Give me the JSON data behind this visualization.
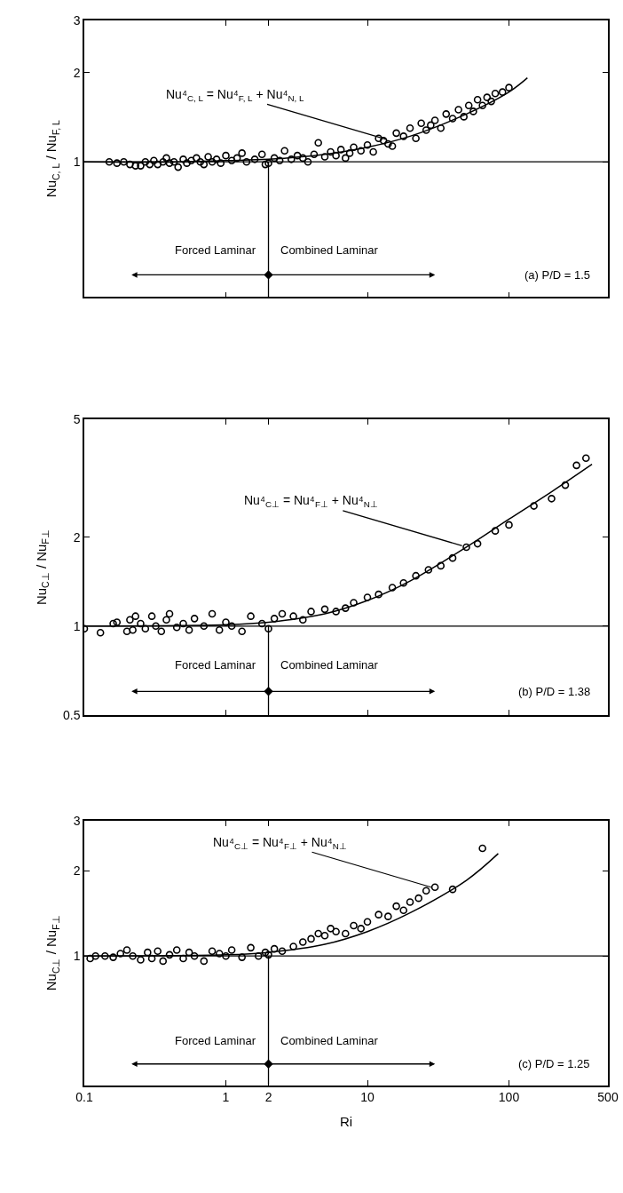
{
  "chart_data": [
    {
      "type": "scatter",
      "xlim": [
        0.1,
        500
      ],
      "ylim": [
        0.35,
        3
      ],
      "xticks": [
        0.1,
        1,
        2,
        10,
        100,
        500
      ],
      "yticks": [
        1,
        2,
        3
      ],
      "log": "xy",
      "tick_labels": "y",
      "marker": "circle",
      "ylabel": "Nu$_{C, L}$ / Nu$_{F, L}$",
      "series": [
        {
          "color": "#000000",
          "x": [
            0.15,
            0.17,
            0.19,
            0.21,
            0.23,
            0.25,
            0.27,
            0.29,
            0.31,
            0.33,
            0.36,
            0.38,
            0.4,
            0.43,
            0.46,
            0.5,
            0.53,
            0.57,
            0.62,
            0.66,
            0.7,
            0.75,
            0.8,
            0.86,
            0.92,
            1.0,
            1.1,
            1.2,
            1.3,
            1.4,
            1.6,
            1.8,
            1.9,
            2.0,
            2.2,
            2.4,
            2.6,
            2.9,
            3.2,
            3.5,
            3.8,
            4.2,
            4.5,
            5.0,
            5.5,
            6.0,
            6.5,
            7.0,
            7.5,
            8.0,
            9,
            10,
            11,
            12,
            13,
            14,
            15,
            16,
            18,
            20,
            22,
            24,
            26,
            28,
            30,
            33,
            36,
            40,
            44,
            48,
            52,
            56,
            60,
            65,
            70,
            75,
            80,
            90,
            100
          ],
          "values": [
            1.0,
            0.99,
            1.0,
            0.98,
            0.97,
            0.97,
            1.0,
            0.98,
            1.01,
            0.98,
            1.0,
            1.03,
            0.99,
            1.0,
            0.96,
            1.02,
            0.99,
            1.01,
            1.03,
            1.0,
            0.98,
            1.04,
            1.0,
            1.02,
            0.99,
            1.05,
            1.01,
            1.03,
            1.07,
            1.0,
            1.02,
            1.06,
            0.98,
            0.99,
            1.03,
            1.01,
            1.09,
            1.02,
            1.05,
            1.03,
            1.0,
            1.06,
            1.16,
            1.04,
            1.08,
            1.05,
            1.1,
            1.03,
            1.07,
            1.12,
            1.09,
            1.14,
            1.08,
            1.2,
            1.18,
            1.15,
            1.13,
            1.25,
            1.22,
            1.3,
            1.2,
            1.35,
            1.28,
            1.33,
            1.38,
            1.3,
            1.45,
            1.4,
            1.5,
            1.42,
            1.55,
            1.48,
            1.62,
            1.55,
            1.65,
            1.6,
            1.7,
            1.72,
            1.78
          ]
        },
        {
          "type": "line",
          "color": "#000000",
          "marker": "none",
          "x": [
            0.1,
            0.5,
            1,
            2,
            5,
            10,
            20,
            50,
            100,
            135
          ],
          "values": [
            1.0,
            1.0,
            1.01,
            1.02,
            1.06,
            1.12,
            1.22,
            1.45,
            1.72,
            1.92
          ]
        }
      ],
      "ref_lines": [
        {
          "axis": "y",
          "value": 1,
          "color": "#000000"
        },
        {
          "axis": "x",
          "value": 2,
          "color": "#000000"
        }
      ],
      "annotations": [
        "Forced Laminar",
        "Combined Laminar",
        "(a) P/D = 1.5",
        {
          "text": "Nu⁴$_{C, L}$ = Nu⁴$_{F, L}$ + Nu⁴$_{N, L}$",
          "x": 13.6,
          "y": 1.19
        }
      ]
    },
    {
      "type": "scatter",
      "xlim": [
        0.1,
        500
      ],
      "ylim": [
        0.5,
        5
      ],
      "xticks": [
        0.1,
        1,
        2,
        10,
        100,
        500
      ],
      "yticks": [
        0.5,
        1,
        2,
        5
      ],
      "log": "xy",
      "tick_labels": "y",
      "marker": "circle",
      "ylabel": "Nu$_{C⊥}$ / Nu$_{F⊥}$",
      "series": [
        {
          "color": "#000000",
          "x": [
            0.1,
            0.13,
            0.16,
            0.17,
            0.2,
            0.21,
            0.22,
            0.23,
            0.25,
            0.27,
            0.3,
            0.32,
            0.35,
            0.38,
            0.4,
            0.45,
            0.5,
            0.55,
            0.6,
            0.7,
            0.8,
            0.9,
            1.0,
            1.1,
            1.3,
            1.5,
            1.8,
            2.0,
            2.2,
            2.5,
            3,
            3.5,
            4,
            5,
            6,
            7,
            8,
            10,
            12,
            15,
            18,
            22,
            27,
            33,
            40,
            50,
            60,
            80,
            100,
            150,
            200,
            250,
            300,
            350
          ],
          "values": [
            0.98,
            0.95,
            1.02,
            1.03,
            0.96,
            1.05,
            0.97,
            1.08,
            1.02,
            0.98,
            1.08,
            1.0,
            0.96,
            1.05,
            1.1,
            0.99,
            1.02,
            0.97,
            1.06,
            1.0,
            1.1,
            0.97,
            1.03,
            1.0,
            0.96,
            1.08,
            1.02,
            0.98,
            1.06,
            1.1,
            1.08,
            1.05,
            1.12,
            1.14,
            1.12,
            1.15,
            1.2,
            1.25,
            1.28,
            1.35,
            1.4,
            1.48,
            1.55,
            1.6,
            1.7,
            1.85,
            1.9,
            2.1,
            2.2,
            2.55,
            2.7,
            3.0,
            3.5,
            3.7
          ]
        },
        {
          "type": "line",
          "color": "#000000",
          "marker": "none",
          "x": [
            0.1,
            1,
            2,
            5,
            10,
            20,
            50,
            100,
            200,
            386
          ],
          "values": [
            1.0,
            1.01,
            1.03,
            1.1,
            1.22,
            1.42,
            1.85,
            2.3,
            2.85,
            3.53
          ]
        }
      ],
      "ref_lines": [
        {
          "axis": "y",
          "value": 1,
          "color": "#000000"
        },
        {
          "axis": "x",
          "value": 2,
          "color": "#000000"
        }
      ],
      "annotations": [
        "Forced Laminar",
        "Combined Laminar",
        "(b) P/D = 1.38",
        {
          "text": "Nu⁴$_{C⊥}$ = Nu⁴$_{F⊥}$ + Nu⁴$_{N⊥}$",
          "x": 46.6,
          "y": 1.87
        }
      ]
    },
    {
      "type": "scatter",
      "xlim": [
        0.1,
        500
      ],
      "ylim": [
        0.35,
        3
      ],
      "xticks": [
        0.1,
        1,
        2,
        10,
        100,
        500
      ],
      "yticks": [
        1,
        2,
        3
      ],
      "log": "xy",
      "marker": "circle",
      "xlabel": "Ri",
      "ylabel": "Nu$_{C⊥}$ / Nu$_{F⊥}$",
      "series": [
        {
          "color": "#000000",
          "x": [
            0.11,
            0.12,
            0.14,
            0.16,
            0.18,
            0.2,
            0.22,
            0.25,
            0.28,
            0.3,
            0.33,
            0.36,
            0.4,
            0.45,
            0.5,
            0.55,
            0.6,
            0.7,
            0.8,
            0.9,
            1.0,
            1.1,
            1.3,
            1.5,
            1.7,
            1.9,
            2.0,
            2.2,
            2.5,
            3.0,
            3.5,
            4,
            4.5,
            5,
            5.5,
            6,
            7,
            8,
            9,
            10,
            12,
            14,
            16,
            18,
            20,
            23,
            26,
            30,
            40,
            65
          ],
          "values": [
            0.98,
            1.0,
            1.0,
            0.99,
            1.02,
            1.05,
            1.0,
            0.97,
            1.03,
            0.98,
            1.04,
            0.96,
            1.01,
            1.05,
            0.98,
            1.03,
            1.0,
            0.96,
            1.04,
            1.02,
            1.0,
            1.05,
            0.99,
            1.07,
            1.0,
            1.03,
            1.01,
            1.06,
            1.04,
            1.08,
            1.12,
            1.15,
            1.2,
            1.18,
            1.25,
            1.22,
            1.2,
            1.28,
            1.25,
            1.32,
            1.4,
            1.38,
            1.5,
            1.45,
            1.55,
            1.6,
            1.7,
            1.75,
            1.72,
            2.4
          ]
        },
        {
          "type": "line",
          "color": "#000000",
          "marker": "none",
          "x": [
            0.1,
            1,
            2,
            5,
            10,
            20,
            50,
            84
          ],
          "values": [
            1.0,
            1.01,
            1.03,
            1.1,
            1.22,
            1.42,
            1.85,
            2.3
          ]
        }
      ],
      "ref_lines": [
        {
          "axis": "y",
          "value": 1,
          "color": "#000000"
        },
        {
          "axis": "x",
          "value": 2,
          "color": "#000000"
        }
      ],
      "annotations": [
        "Forced Laminar",
        "Combined Laminar",
        "(c) P/D = 1.25",
        {
          "text": "Nu⁴$_{C⊥}$ = Nu⁴$_{F⊥}$ + Nu⁴$_{N⊥}$",
          "x": 28.2,
          "y": 1.75
        }
      ]
    }
  ]
}
